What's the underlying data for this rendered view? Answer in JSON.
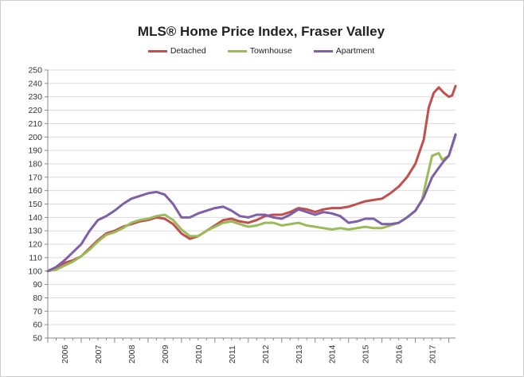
{
  "chart_data": {
    "type": "line",
    "title": "MLS® Home Price Index, Fraser Valley",
    "xlabel": "",
    "ylabel": "",
    "ylim": [
      50,
      250
    ],
    "y_ticks": [
      50,
      60,
      70,
      80,
      90,
      100,
      110,
      120,
      130,
      140,
      150,
      160,
      170,
      180,
      190,
      200,
      210,
      220,
      230,
      240,
      250
    ],
    "x_ticks": [
      "2006",
      "2007",
      "2008",
      "2009",
      "2010",
      "2011",
      "2012",
      "2013",
      "2014",
      "2015",
      "2016",
      "2017"
    ],
    "x_range": [
      2005.0,
      2017.2
    ],
    "grid": "horizontal",
    "legend_placement": "top-center",
    "series": [
      {
        "name": "Detached",
        "color": "#c0504d",
        "points": [
          [
            2005.0,
            100
          ],
          [
            2005.25,
            102
          ],
          [
            2005.5,
            106
          ],
          [
            2005.75,
            108
          ],
          [
            2006.0,
            111
          ],
          [
            2006.25,
            117
          ],
          [
            2006.5,
            123
          ],
          [
            2006.75,
            128
          ],
          [
            2007.0,
            130
          ],
          [
            2007.25,
            133
          ],
          [
            2007.5,
            135
          ],
          [
            2007.75,
            137
          ],
          [
            2008.0,
            138
          ],
          [
            2008.25,
            140
          ],
          [
            2008.5,
            139
          ],
          [
            2008.75,
            135
          ],
          [
            2009.0,
            128
          ],
          [
            2009.25,
            124
          ],
          [
            2009.5,
            126
          ],
          [
            2009.75,
            130
          ],
          [
            2010.0,
            134
          ],
          [
            2010.25,
            138
          ],
          [
            2010.5,
            139
          ],
          [
            2010.75,
            137
          ],
          [
            2011.0,
            136
          ],
          [
            2011.25,
            138
          ],
          [
            2011.5,
            141
          ],
          [
            2011.75,
            142
          ],
          [
            2012.0,
            142
          ],
          [
            2012.25,
            144
          ],
          [
            2012.5,
            147
          ],
          [
            2012.75,
            146
          ],
          [
            2013.0,
            144
          ],
          [
            2013.25,
            146
          ],
          [
            2013.5,
            147
          ],
          [
            2013.75,
            147
          ],
          [
            2014.0,
            148
          ],
          [
            2014.25,
            150
          ],
          [
            2014.5,
            152
          ],
          [
            2014.75,
            153
          ],
          [
            2015.0,
            154
          ],
          [
            2015.25,
            158
          ],
          [
            2015.5,
            163
          ],
          [
            2015.75,
            170
          ],
          [
            2016.0,
            180
          ],
          [
            2016.25,
            198
          ],
          [
            2016.4,
            222
          ],
          [
            2016.55,
            233
          ],
          [
            2016.7,
            237
          ],
          [
            2016.85,
            233
          ],
          [
            2017.0,
            230
          ],
          [
            2017.1,
            231
          ],
          [
            2017.2,
            238
          ]
        ]
      },
      {
        "name": "Townhouse",
        "color": "#9bbb59",
        "points": [
          [
            2005.0,
            100
          ],
          [
            2005.25,
            101
          ],
          [
            2005.5,
            104
          ],
          [
            2005.75,
            107
          ],
          [
            2006.0,
            111
          ],
          [
            2006.25,
            116
          ],
          [
            2006.5,
            122
          ],
          [
            2006.75,
            127
          ],
          [
            2007.0,
            129
          ],
          [
            2007.25,
            132
          ],
          [
            2007.5,
            136
          ],
          [
            2007.75,
            138
          ],
          [
            2008.0,
            139
          ],
          [
            2008.25,
            141
          ],
          [
            2008.5,
            142
          ],
          [
            2008.75,
            138
          ],
          [
            2009.0,
            131
          ],
          [
            2009.25,
            126
          ],
          [
            2009.5,
            126
          ],
          [
            2009.75,
            130
          ],
          [
            2010.0,
            133
          ],
          [
            2010.25,
            136
          ],
          [
            2010.5,
            137
          ],
          [
            2010.75,
            135
          ],
          [
            2011.0,
            133
          ],
          [
            2011.25,
            134
          ],
          [
            2011.5,
            136
          ],
          [
            2011.75,
            136
          ],
          [
            2012.0,
            134
          ],
          [
            2012.25,
            135
          ],
          [
            2012.5,
            136
          ],
          [
            2012.75,
            134
          ],
          [
            2013.0,
            133
          ],
          [
            2013.25,
            132
          ],
          [
            2013.5,
            131
          ],
          [
            2013.75,
            132
          ],
          [
            2014.0,
            131
          ],
          [
            2014.25,
            132
          ],
          [
            2014.5,
            133
          ],
          [
            2014.75,
            132
          ],
          [
            2015.0,
            132
          ],
          [
            2015.25,
            134
          ],
          [
            2015.5,
            136
          ],
          [
            2015.75,
            140
          ],
          [
            2016.0,
            145
          ],
          [
            2016.2,
            153
          ],
          [
            2016.35,
            170
          ],
          [
            2016.5,
            186
          ],
          [
            2016.7,
            188
          ],
          [
            2016.8,
            183
          ],
          [
            2017.0,
            186
          ],
          [
            2017.2,
            201
          ]
        ]
      },
      {
        "name": "Apartment",
        "color": "#7f5fa8",
        "points": [
          [
            2005.0,
            100
          ],
          [
            2005.25,
            103
          ],
          [
            2005.5,
            108
          ],
          [
            2005.75,
            114
          ],
          [
            2006.0,
            120
          ],
          [
            2006.25,
            130
          ],
          [
            2006.5,
            138
          ],
          [
            2006.75,
            141
          ],
          [
            2007.0,
            145
          ],
          [
            2007.25,
            150
          ],
          [
            2007.5,
            154
          ],
          [
            2007.75,
            156
          ],
          [
            2008.0,
            158
          ],
          [
            2008.25,
            159
          ],
          [
            2008.5,
            157
          ],
          [
            2008.75,
            150
          ],
          [
            2009.0,
            140
          ],
          [
            2009.25,
            140
          ],
          [
            2009.5,
            143
          ],
          [
            2009.75,
            145
          ],
          [
            2010.0,
            147
          ],
          [
            2010.25,
            148
          ],
          [
            2010.5,
            145
          ],
          [
            2010.75,
            141
          ],
          [
            2011.0,
            140
          ],
          [
            2011.25,
            142
          ],
          [
            2011.5,
            142
          ],
          [
            2011.75,
            140
          ],
          [
            2012.0,
            139
          ],
          [
            2012.25,
            142
          ],
          [
            2012.5,
            146
          ],
          [
            2012.75,
            144
          ],
          [
            2013.0,
            142
          ],
          [
            2013.25,
            144
          ],
          [
            2013.5,
            143
          ],
          [
            2013.75,
            141
          ],
          [
            2014.0,
            136
          ],
          [
            2014.25,
            137
          ],
          [
            2014.5,
            139
          ],
          [
            2014.75,
            139
          ],
          [
            2015.0,
            135
          ],
          [
            2015.25,
            135
          ],
          [
            2015.5,
            136
          ],
          [
            2015.75,
            140
          ],
          [
            2016.0,
            145
          ],
          [
            2016.25,
            155
          ],
          [
            2016.5,
            170
          ],
          [
            2016.7,
            177
          ],
          [
            2016.85,
            182
          ],
          [
            2017.0,
            186
          ],
          [
            2017.2,
            202
          ]
        ]
      }
    ]
  }
}
